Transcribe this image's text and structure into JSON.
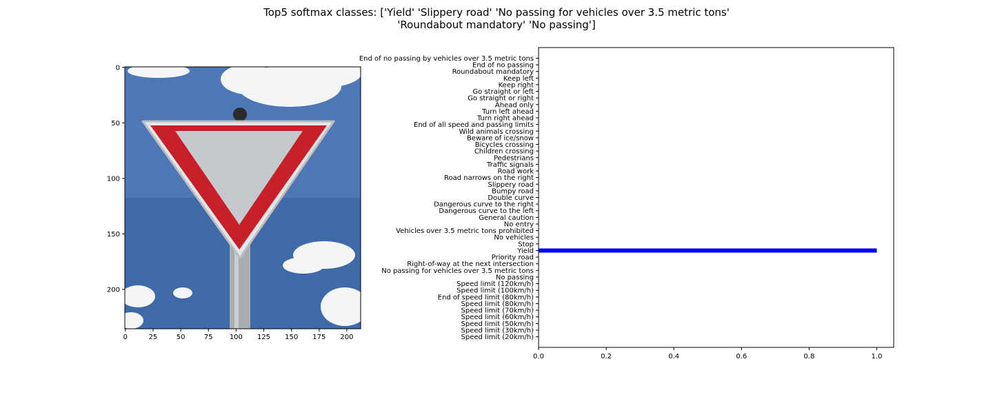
{
  "title_lines": [
    "Top5 softmax classes: ['Yield' 'Slippery road' 'No passing for vehicles over 3.5 metric tons'",
    "'Roundabout mandatory' 'No passing']"
  ],
  "image_panel": {
    "subject": "yield traffic sign against blue sky with clouds",
    "x_ticks": [
      "0",
      "25",
      "50",
      "75",
      "100",
      "125",
      "150",
      "175",
      "200"
    ],
    "y_ticks": [
      "0",
      "50",
      "100",
      "150",
      "200"
    ],
    "x_range": [
      0,
      213
    ],
    "y_range": [
      0,
      236
    ],
    "colors": {
      "sky": "#3f6aa8",
      "sign_red": "#c8202a",
      "sign_inner": "#c5c8cc",
      "pole": "#a7adb0",
      "cloud": "#f3f5f7"
    }
  },
  "chart_data": {
    "type": "bar",
    "orientation": "horizontal",
    "categories": [
      "Speed limit (20km/h)",
      "Speed limit (30km/h)",
      "Speed limit (50km/h)",
      "Speed limit (60km/h)",
      "Speed limit (70km/h)",
      "Speed limit (80km/h)",
      "End of speed limit (80km/h)",
      "Speed limit (100km/h)",
      "Speed limit (120km/h)",
      "No passing",
      "No passing for vehicles over 3.5 metric tons",
      "Right-of-way at the next intersection",
      "Priority road",
      "Yield",
      "Stop",
      "No vehicles",
      "Vehicles over 3.5 metric tons prohibited",
      "No entry",
      "General caution",
      "Dangerous curve to the left",
      "Dangerous curve to the right",
      "Double curve",
      "Bumpy road",
      "Slippery road",
      "Road narrows on the right",
      "Road work",
      "Traffic signals",
      "Pedestrians",
      "Children crossing",
      "Bicycles crossing",
      "Beware of ice/snow",
      "Wild animals crossing",
      "End of all speed and passing limits",
      "Turn right ahead",
      "Turn left ahead",
      "Ahead only",
      "Go straight or right",
      "Go straight or left",
      "Keep right",
      "Keep left",
      "Roundabout mandatory",
      "End of no passing",
      "End of no passing by vehicles over 3.5 metric tons"
    ],
    "values": [
      0,
      0,
      0,
      0,
      0,
      0,
      0,
      0,
      0,
      0,
      0,
      0,
      0,
      1.0,
      0,
      0,
      0,
      0,
      0,
      0,
      0,
      0,
      0,
      0,
      0,
      0,
      0,
      0,
      0,
      0,
      0,
      0,
      0,
      0,
      0,
      0,
      0,
      0,
      0,
      0,
      0,
      0,
      0
    ],
    "xlim": [
      0,
      1.05
    ],
    "x_ticks": [
      "0.0",
      "0.2",
      "0.4",
      "0.6",
      "0.8",
      "1.0"
    ],
    "bar_color": "#0000ff",
    "grid": false
  }
}
